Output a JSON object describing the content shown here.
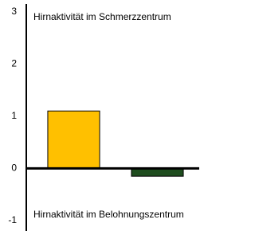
{
  "chart_data": {
    "type": "bar",
    "annotations": [
      "Hirnaktivität im Schmerzzentrum",
      "Hirnaktivität im Belohnungszentrum"
    ],
    "categories": [
      null,
      null
    ],
    "values": [
      1.1,
      -0.15
    ],
    "colors": [
      "#ffc000",
      "#1f4d1f"
    ],
    "ylim": [
      -1.2,
      3.15
    ],
    "yticks": [
      -1,
      0,
      1,
      2,
      3
    ],
    "grid": false
  }
}
